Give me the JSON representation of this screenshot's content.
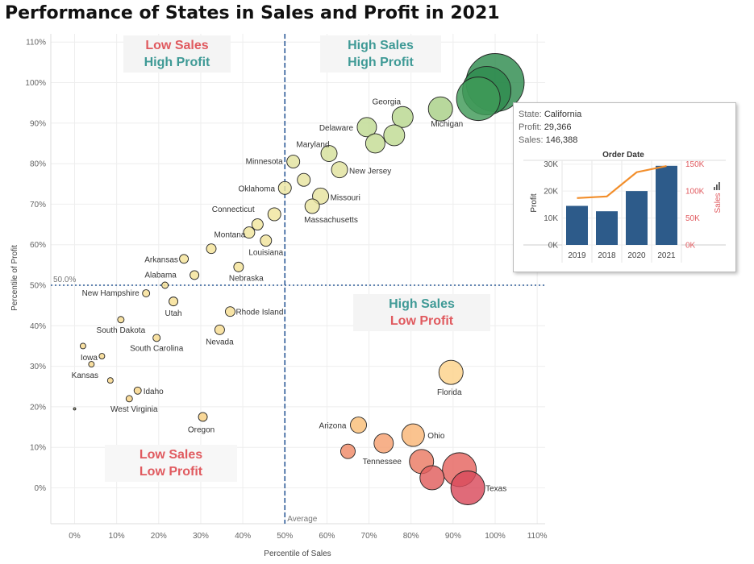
{
  "title": "Performance of States in Sales and Profit in 2021",
  "quadrants": {
    "top_left": {
      "line1": "Low Sales",
      "line2": "High Profit"
    },
    "top_right": {
      "line1": "High Sales",
      "line2": "High Profit"
    },
    "bottom_left": {
      "line1": "Low Sales",
      "line2": "Low Profit"
    },
    "bottom_right": {
      "line1": "High Sales",
      "line2": "Low Profit"
    }
  },
  "colors": {
    "red": "#e05a5f",
    "teal": "#3f9a96",
    "ref_line": "#2d5b97",
    "bar": "#2d5b8a",
    "sales_line": "#f28e2b"
  },
  "chart_data": [
    {
      "type": "scatter",
      "title": "Performance of States in Sales and Profit in 2021",
      "xlabel": "Percentile of Sales",
      "ylabel": "Percentile of Profit",
      "xlim": [
        -6,
        112
      ],
      "ylim": [
        -9,
        112
      ],
      "x_ticks": [
        "0%",
        "10%",
        "20%",
        "30%",
        "40%",
        "50%",
        "60%",
        "70%",
        "80%",
        "90%",
        "100%",
        "110%"
      ],
      "y_ticks": [
        "0%",
        "10%",
        "20%",
        "30%",
        "40%",
        "50%",
        "60%",
        "70%",
        "80%",
        "90%",
        "100%",
        "110%"
      ],
      "reference_lines": {
        "x": {
          "value": 50,
          "label": "Average"
        },
        "y": {
          "value": 50,
          "label": "50.0%"
        }
      },
      "grid": true,
      "points": [
        {
          "x": 100,
          "y": 100,
          "size": 36,
          "color": "#2e8b4e",
          "label": "California"
        },
        {
          "x": 98,
          "y": 98,
          "size": 30,
          "color": "#2e8b4e",
          "label": ""
        },
        {
          "x": 96,
          "y": 96,
          "size": 27,
          "color": "#3f9a58",
          "label": ""
        },
        {
          "x": 87,
          "y": 93.5,
          "size": 15,
          "color": "#a8cf86",
          "label": "Michigan"
        },
        {
          "x": 78,
          "y": 91.5,
          "size": 13,
          "color": "#b8d78f",
          "label": "Georgia"
        },
        {
          "x": 69.5,
          "y": 89,
          "size": 12,
          "color": "#bfda92",
          "label": "Delaware"
        },
        {
          "x": 76,
          "y": 87,
          "size": 13,
          "color": "#bfda92",
          "label": ""
        },
        {
          "x": 71.5,
          "y": 85,
          "size": 12,
          "color": "#c4dc94",
          "label": ""
        },
        {
          "x": 60.5,
          "y": 82.5,
          "size": 10,
          "color": "#d6e19b",
          "label": "Maryland"
        },
        {
          "x": 52,
          "y": 80.5,
          "size": 8,
          "color": "#e3e39f",
          "label": "Minnesota"
        },
        {
          "x": 63,
          "y": 78.5,
          "size": 10,
          "color": "#e0e29d",
          "label": "New Jersey"
        },
        {
          "x": 54.5,
          "y": 76,
          "size": 8,
          "color": "#e8e4a0",
          "label": ""
        },
        {
          "x": 50,
          "y": 74,
          "size": 8,
          "color": "#ece5a1",
          "label": "Oklahoma"
        },
        {
          "x": 58.5,
          "y": 72,
          "size": 10,
          "color": "#e6e39f",
          "label": "Missouri"
        },
        {
          "x": 56.5,
          "y": 69.5,
          "size": 9,
          "color": "#e9e4a0",
          "label": "Massachusetts"
        },
        {
          "x": 47.5,
          "y": 67.5,
          "size": 8,
          "color": "#f0e59d",
          "label": "Connecticut"
        },
        {
          "x": 43.5,
          "y": 65,
          "size": 7,
          "color": "#f0e59d",
          "label": ""
        },
        {
          "x": 41.5,
          "y": 63,
          "size": 7,
          "color": "#f0e59d",
          "label": "Montana"
        },
        {
          "x": 45.5,
          "y": 61,
          "size": 7,
          "color": "#f0e39b",
          "label": "Louisiana"
        },
        {
          "x": 32.5,
          "y": 59,
          "size": 6,
          "color": "#f4e398",
          "label": ""
        },
        {
          "x": 26,
          "y": 56.5,
          "size": 5.5,
          "color": "#f4e398",
          "label": "Arkansas"
        },
        {
          "x": 39,
          "y": 54.5,
          "size": 6,
          "color": "#f4e398",
          "label": "Nebraska"
        },
        {
          "x": 28.5,
          "y": 52.5,
          "size": 5.5,
          "color": "#f4e398",
          "label": "Alabama"
        },
        {
          "x": 21.5,
          "y": 50,
          "size": 4,
          "color": "#f5e196",
          "label": ""
        },
        {
          "x": 17,
          "y": 48,
          "size": 4.5,
          "color": "#f6df95",
          "label": "New Hampshire"
        },
        {
          "x": 23.5,
          "y": 46,
          "size": 5.5,
          "color": "#f6df93",
          "label": "Utah"
        },
        {
          "x": 37,
          "y": 43.5,
          "size": 6,
          "color": "#f6de92",
          "label": "Rhode Island"
        },
        {
          "x": 11,
          "y": 41.5,
          "size": 4,
          "color": "#f7dc90",
          "label": "South Dakota"
        },
        {
          "x": 34.5,
          "y": 39,
          "size": 6,
          "color": "#f7dc90",
          "label": "Nevada"
        },
        {
          "x": 19.5,
          "y": 37,
          "size": 4.5,
          "color": "#f7da8e",
          "label": "South Carolina"
        },
        {
          "x": 2,
          "y": 35,
          "size": 3.5,
          "color": "#f7d98c",
          "label": ""
        },
        {
          "x": 6.5,
          "y": 32.5,
          "size": 3.5,
          "color": "#f7d88b",
          "label": "Iowa"
        },
        {
          "x": 4,
          "y": 30.5,
          "size": 3.5,
          "color": "#f7d78a",
          "label": "Kansas"
        },
        {
          "x": 8.5,
          "y": 26.5,
          "size": 3.5,
          "color": "#f8d588",
          "label": ""
        },
        {
          "x": 15,
          "y": 24,
          "size": 4.5,
          "color": "#f8d486",
          "label": "Idaho"
        },
        {
          "x": 13,
          "y": 22,
          "size": 4,
          "color": "#f8d385",
          "label": "West Virginia"
        },
        {
          "x": 0,
          "y": 19.5,
          "size": 1.5,
          "color": "#a0a080",
          "label": ""
        },
        {
          "x": 30.5,
          "y": 17.5,
          "size": 5.5,
          "color": "#f8d081",
          "label": "Oregon"
        },
        {
          "x": 89.5,
          "y": 28.5,
          "size": 15,
          "color": "#fcd28a",
          "label": "Florida"
        },
        {
          "x": 67.5,
          "y": 15.5,
          "size": 10,
          "color": "#f9be78",
          "label": "Arizona"
        },
        {
          "x": 80.5,
          "y": 13,
          "size": 14,
          "color": "#f9b676",
          "label": "Ohio"
        },
        {
          "x": 73.5,
          "y": 11,
          "size": 12,
          "color": "#f5a070",
          "label": "Tennessee"
        },
        {
          "x": 65,
          "y": 9,
          "size": 9,
          "color": "#ef8a68",
          "label": ""
        },
        {
          "x": 82.5,
          "y": 6.5,
          "size": 15,
          "color": "#ea7a63",
          "label": ""
        },
        {
          "x": 91.5,
          "y": 4.5,
          "size": 21,
          "color": "#e5645f",
          "label": ""
        },
        {
          "x": 85,
          "y": 2.5,
          "size": 15,
          "color": "#e15e5d",
          "label": ""
        },
        {
          "x": 93.5,
          "y": 0,
          "size": 21,
          "color": "#d94a5c",
          "label": "Texas"
        }
      ]
    },
    {
      "type": "bar",
      "title": "Order Date",
      "categories": [
        "2019",
        "2018",
        "2020",
        "2021"
      ],
      "series": [
        {
          "name": "Profit",
          "type": "bar",
          "values": [
            14500,
            12500,
            20000,
            29366
          ]
        },
        {
          "name": "Sales",
          "type": "line",
          "values": [
            87000,
            90000,
            135000,
            146388
          ]
        }
      ],
      "ylabel": "Profit",
      "y2label": "Sales",
      "ylim": [
        0,
        32000
      ],
      "y2lim": [
        0,
        160000
      ],
      "y_ticks": [
        "0K",
        "10K",
        "20K",
        "30K"
      ],
      "y2_ticks": [
        "0K",
        "50K",
        "100K",
        "150K"
      ]
    }
  ],
  "tooltip": {
    "state_key": "State:",
    "state_val": "California",
    "profit_key": "Profit:",
    "profit_val": "29,366",
    "sales_key": "Sales:",
    "sales_val": "146,388"
  }
}
